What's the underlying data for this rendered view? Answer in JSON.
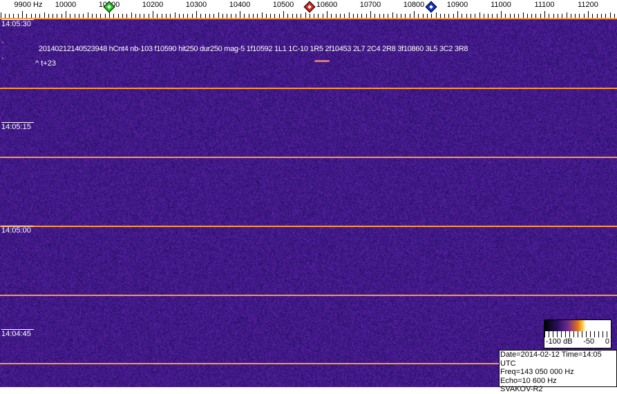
{
  "ruler": {
    "unit_label": "9900 Hz",
    "labels": [
      "10000",
      "10100",
      "10200",
      "10300",
      "10400",
      "10500",
      "10600",
      "10700",
      "10800",
      "10900",
      "11000",
      "11100",
      "11200"
    ],
    "min_hz": 9900,
    "max_hz": 11200
  },
  "markers": [
    {
      "name": "green",
      "freq_hz": 10100,
      "color": "#22cc22"
    },
    {
      "name": "red",
      "freq_hz": 10560,
      "color": "#dd2222"
    },
    {
      "name": "blue",
      "freq_hz": 10840,
      "color": "#1133cc"
    }
  ],
  "times": [
    "14:05:30",
    "14:05:15",
    "14:05:00",
    "14:04:45"
  ],
  "annotation": {
    "line1": "20140212140523948 hCnt4 nb-103 f10590 hit250 dur250 mag-5 1f10592 1L1 1C-10 1R5 2f10453 2L7 2C4 2R8 3f10860 3L5 3C2 3R8",
    "line2": "^ t+23",
    "mark1": "`",
    "mark2": "`"
  },
  "colorbar": {
    "min_label": "-100 dB",
    "mid_label": "-50",
    "max_label": "0"
  },
  "info": {
    "date_time": "Date=2014-02-12 Time=14:05 UTC",
    "freq": "Freq=143 050 000 Hz",
    "echo": "Echo=10 600 Hz",
    "station": "SVAKOV-R2"
  },
  "colors": {
    "background": "#3a1a80",
    "line": "#ff9a3a"
  }
}
